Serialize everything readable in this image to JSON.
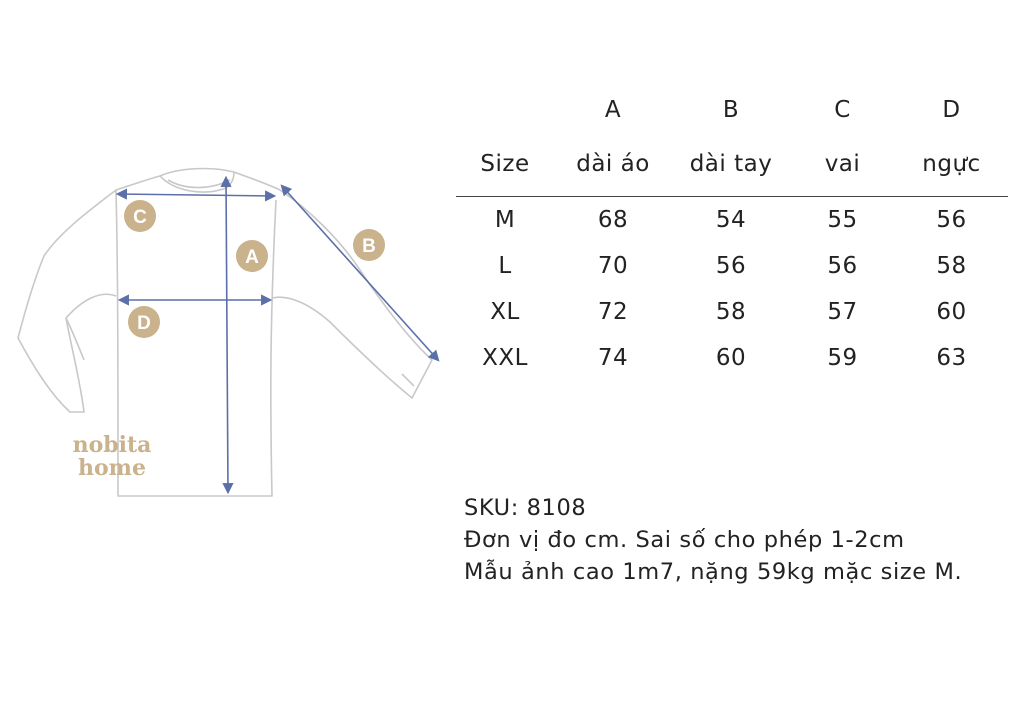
{
  "colors": {
    "outline": "#c8c8c8",
    "measure_line": "#5b6fa8",
    "badge": "#c9b28c",
    "watermark": "#c9b28c",
    "text": "#222222"
  },
  "diagram": {
    "badges": {
      "a": "A",
      "b": "B",
      "c": "C",
      "d": "D"
    },
    "watermark": {
      "line1": "nobita",
      "line2": "home"
    }
  },
  "size_table": {
    "letters": [
      "A",
      "B",
      "C",
      "D"
    ],
    "columns": [
      "Size",
      "dài áo",
      "dài tay",
      "vai",
      "ngực"
    ],
    "rows": [
      [
        "M",
        "68",
        "54",
        "55",
        "56"
      ],
      [
        "L",
        "70",
        "56",
        "56",
        "58"
      ],
      [
        "XL",
        "72",
        "58",
        "57",
        "60"
      ],
      [
        "XXL",
        "74",
        "60",
        "59",
        "63"
      ]
    ]
  },
  "notes": {
    "sku": "SKU: 8108",
    "unit": "Đơn vị đo cm. Sai số cho phép 1-2cm",
    "model": "Mẫu ảnh cao 1m7, nặng 59kg mặc size M."
  }
}
